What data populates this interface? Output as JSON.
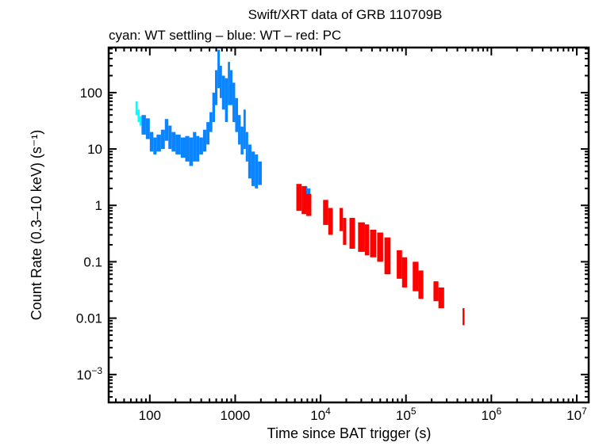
{
  "chart_data": {
    "type": "scatter",
    "title": "Swift/XRT data of GRB 110709B",
    "subtitle": "cyan: WT settling – blue: WT – red: PC",
    "xlabel": "Time since BAT trigger (s)",
    "ylabel": "Count Rate (0.3–10 keV) (s⁻¹)",
    "xscale": "log",
    "yscale": "log",
    "xlim": [
      33,
      13800000
    ],
    "ylim": [
      0.00032,
      630
    ],
    "grid": false,
    "x_ticks": [
      {
        "value": 100,
        "label": "100"
      },
      {
        "value": 1000,
        "label": "1000"
      },
      {
        "value": 10000,
        "label": "10",
        "exp": "4"
      },
      {
        "value": 100000,
        "label": "10",
        "exp": "5"
      },
      {
        "value": 1000000,
        "label": "10",
        "exp": "6"
      },
      {
        "value": 10000000,
        "label": "10",
        "exp": "7"
      }
    ],
    "y_ticks": [
      {
        "value": 0.001,
        "label": "10",
        "exp": "−3"
      },
      {
        "value": 0.01,
        "label": "0.01"
      },
      {
        "value": 0.1,
        "label": "0.1"
      },
      {
        "value": 1,
        "label": "1"
      },
      {
        "value": 10,
        "label": "10"
      },
      {
        "value": 100,
        "label": "100"
      }
    ],
    "point_format": [
      "t_start",
      "t_end",
      "rate_low",
      "rate_high"
    ],
    "series": [
      {
        "mode": "WT settling",
        "color": "#00ffff",
        "points": [
          [
            68,
            72,
            40,
            70
          ],
          [
            72,
            76,
            30,
            50
          ],
          [
            76,
            80,
            26,
            38
          ]
        ]
      },
      {
        "mode": "WT",
        "color": "#0a84ff",
        "points": [
          [
            80,
            90,
            18,
            40
          ],
          [
            90,
            100,
            15,
            35
          ],
          [
            100,
            110,
            9,
            20
          ],
          [
            110,
            120,
            8,
            16
          ],
          [
            120,
            135,
            9,
            18
          ],
          [
            135,
            150,
            10,
            22
          ],
          [
            150,
            165,
            14,
            34
          ],
          [
            165,
            180,
            10,
            26
          ],
          [
            180,
            200,
            9,
            20
          ],
          [
            200,
            230,
            8,
            18
          ],
          [
            230,
            260,
            7,
            16
          ],
          [
            260,
            290,
            6,
            17
          ],
          [
            290,
            320,
            5,
            16
          ],
          [
            320,
            350,
            6,
            20
          ],
          [
            350,
            380,
            6,
            17
          ],
          [
            380,
            420,
            8,
            16
          ],
          [
            420,
            460,
            9,
            22
          ],
          [
            460,
            500,
            12,
            30
          ],
          [
            500,
            540,
            20,
            45
          ],
          [
            540,
            580,
            30,
            100
          ],
          [
            580,
            620,
            60,
            250
          ],
          [
            620,
            660,
            120,
            575
          ],
          [
            660,
            700,
            80,
            300
          ],
          [
            700,
            760,
            50,
            200
          ],
          [
            760,
            820,
            30,
            180
          ],
          [
            820,
            870,
            60,
            350
          ],
          [
            870,
            930,
            60,
            250
          ],
          [
            930,
            1000,
            30,
            150
          ],
          [
            1000,
            1080,
            20,
            80
          ],
          [
            1080,
            1160,
            12,
            40
          ],
          [
            1160,
            1250,
            8,
            25
          ],
          [
            1250,
            1330,
            10,
            50
          ],
          [
            1330,
            1420,
            6,
            20
          ],
          [
            1420,
            1550,
            3,
            12
          ],
          [
            1550,
            1700,
            2.2,
            9
          ],
          [
            1700,
            1850,
            2,
            8
          ],
          [
            1850,
            2050,
            2.3,
            6
          ],
          [
            6500,
            7000,
            0.9,
            2.2
          ],
          [
            7000,
            7600,
            0.65,
            2
          ]
        ]
      },
      {
        "mode": "PC",
        "color": "#ff0000",
        "points": [
          [
            5200,
            6000,
            0.8,
            2.4
          ],
          [
            6000,
            6800,
            0.7,
            2.2
          ],
          [
            6800,
            7800,
            0.65,
            1.6
          ],
          [
            10700,
            12300,
            0.45,
            1.25
          ],
          [
            12300,
            13900,
            0.3,
            0.9
          ],
          [
            16700,
            18300,
            0.35,
            0.9
          ],
          [
            18300,
            20000,
            0.2,
            0.6
          ],
          [
            21800,
            25300,
            0.17,
            0.6
          ],
          [
            27500,
            33000,
            0.15,
            0.5
          ],
          [
            33000,
            37000,
            0.13,
            0.46
          ],
          [
            38000,
            45000,
            0.12,
            0.37
          ],
          [
            46000,
            54000,
            0.1,
            0.33
          ],
          [
            56000,
            66000,
            0.06,
            0.27
          ],
          [
            78000,
            90000,
            0.05,
            0.16
          ],
          [
            90000,
            103000,
            0.035,
            0.12
          ],
          [
            120000,
            140000,
            0.03,
            0.1
          ],
          [
            140000,
            160000,
            0.022,
            0.07
          ],
          [
            210000,
            240000,
            0.02,
            0.045
          ],
          [
            240000,
            280000,
            0.015,
            0.035
          ],
          [
            460000,
            485000,
            0.0075,
            0.015
          ]
        ]
      }
    ]
  }
}
